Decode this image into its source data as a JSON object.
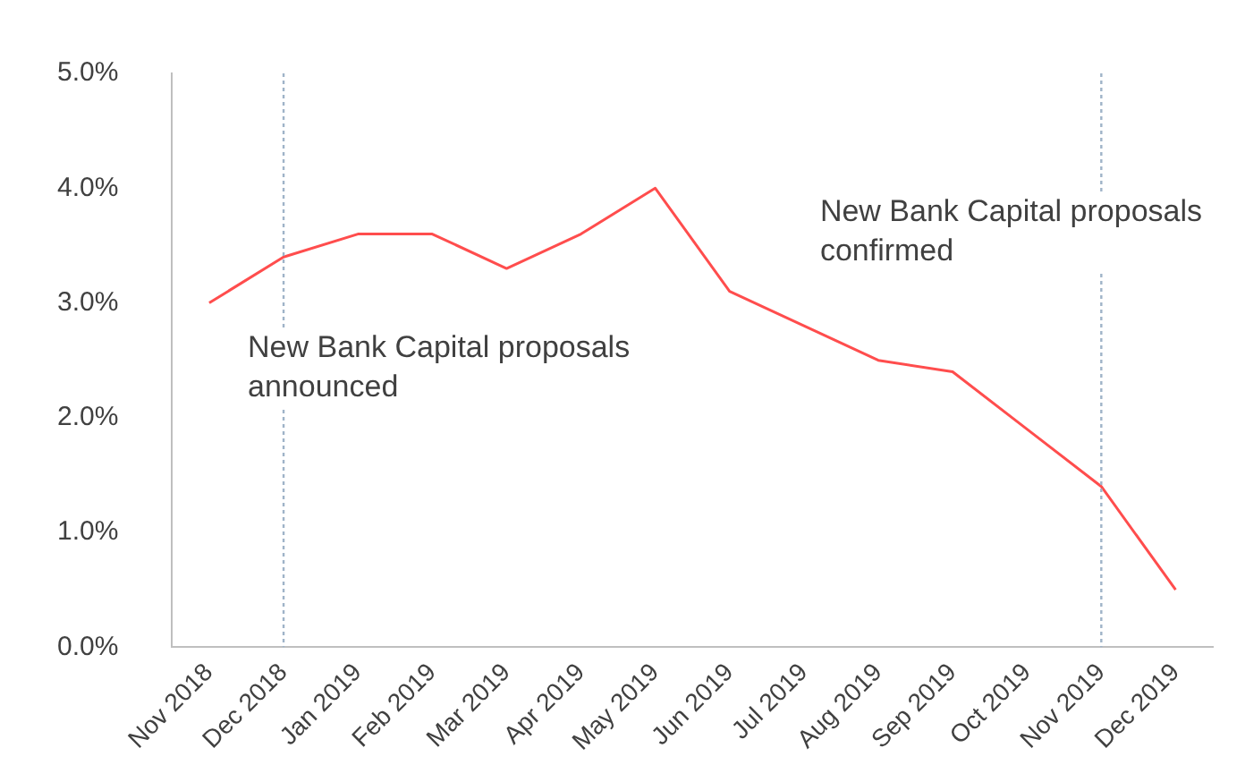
{
  "chart_data": {
    "type": "line",
    "categories": [
      "Nov 2018",
      "Dec 2018",
      "Jan 2019",
      "Feb 2019",
      "Mar 2019",
      "Apr 2019",
      "May 2019",
      "Jun 2019",
      "Jul 2019",
      "Aug 2019",
      "Sep 2019",
      "Oct 2019",
      "Nov 2019",
      "Dec 2019"
    ],
    "series": [
      {
        "color": "#ff4d4d",
        "values": [
          3.0,
          3.4,
          3.6,
          3.6,
          3.3,
          3.6,
          4.0,
          3.1,
          2.8,
          2.5,
          2.4,
          1.9,
          1.4,
          0.5
        ]
      }
    ],
    "ylim": [
      0,
      5
    ],
    "yticks": [
      {
        "value": 0,
        "label": "0.0%"
      },
      {
        "value": 1,
        "label": "1.0%"
      },
      {
        "value": 2,
        "label": "2.0%"
      },
      {
        "value": 3,
        "label": "3.0%"
      },
      {
        "value": 4,
        "label": "4.0%"
      },
      {
        "value": 5,
        "label": "5.0%"
      }
    ],
    "grid": false,
    "legend": false,
    "marker": "none",
    "line_style": "solid",
    "ref_lines": [
      {
        "axis": "x",
        "value": "Dec 2018",
        "label": "New Bank Capital proposals announced",
        "color": "#9fb3c8",
        "line_style": "dotted"
      },
      {
        "axis": "x",
        "value": "Nov 2019",
        "label": "New Bank Capital proposals confirmed",
        "color": "#9fb3c8",
        "line_style": "dotted"
      }
    ]
  }
}
